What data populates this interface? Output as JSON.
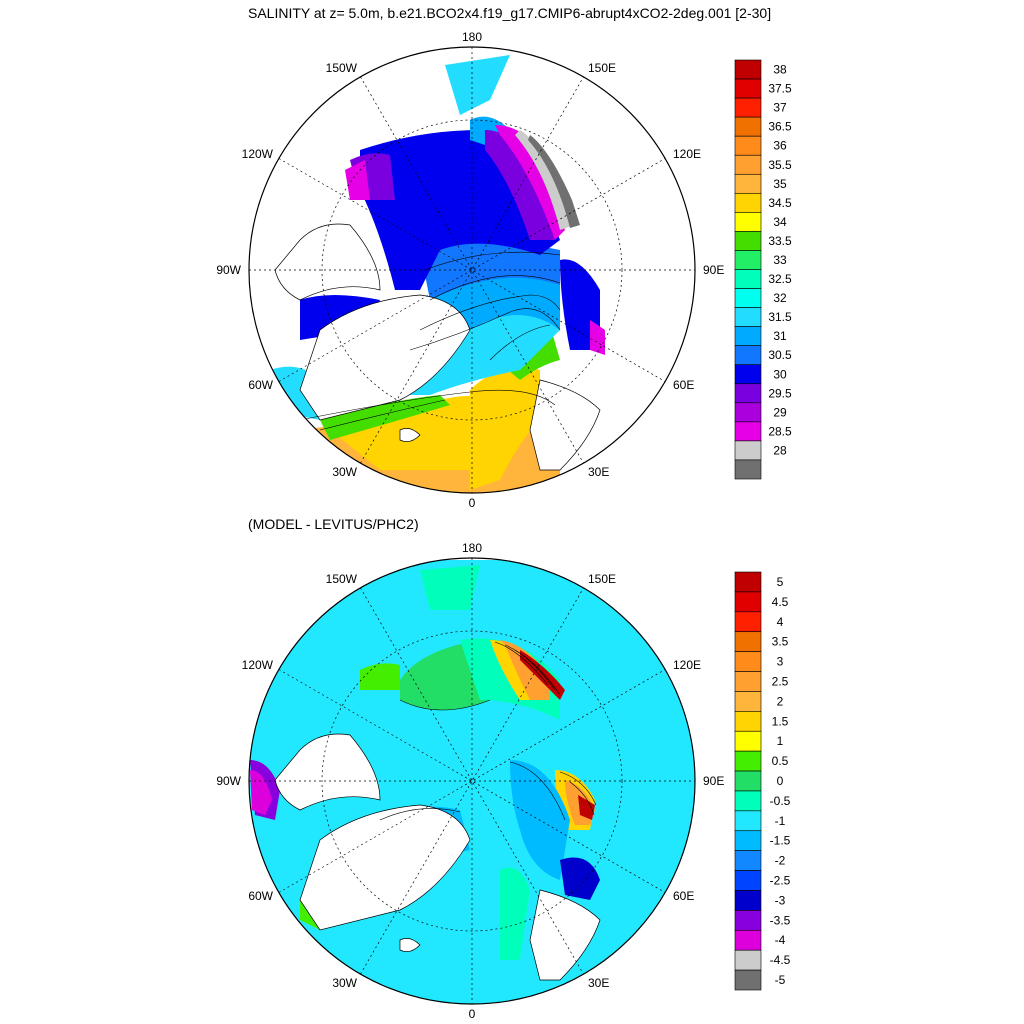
{
  "panels": [
    {
      "title": "SALINITY at z=   5.0m, b.e21.BCO2x4.f19_g17.CMIP6-abrupt4xCO2-2deg.001 [2-30]",
      "longitude_labels": {
        "top": "180",
        "bottom": "0",
        "left": "90W",
        "right": "90E",
        "upper_left_1": "150W",
        "upper_left_2": "120W",
        "lower_left_1": "60W",
        "lower_left_2": "30W",
        "upper_right_1": "150E",
        "upper_right_2": "120E",
        "lower_right_1": "60E",
        "lower_right_2": "30E"
      },
      "colorbar": {
        "labels": [
          "38",
          "37.5",
          "37",
          "36.5",
          "36",
          "35.5",
          "35",
          "34.5",
          "34",
          "33.5",
          "33",
          "32.5",
          "32",
          "31.5",
          "31",
          "30.5",
          "30",
          "29.5",
          "29",
          "28.5",
          "28"
        ],
        "colors": [
          "#c00000",
          "#e00000",
          "#ff2000",
          "#f07000",
          "#ff8c1a",
          "#ffa030",
          "#ffb43c",
          "#ffd400",
          "#ffff00",
          "#44dd00",
          "#22ee66",
          "#00ffbb",
          "#00ffee",
          "#22ddff",
          "#00aaff",
          "#1177ff",
          "#0000ee",
          "#7a00e0",
          "#aa00dd",
          "#e600e6",
          "#cccccc",
          "#707070"
        ]
      }
    },
    {
      "title": "(MODEL - LEVITUS/PHC2)",
      "longitude_labels": {
        "top": "180",
        "bottom": "0",
        "left": "90W",
        "right": "90E",
        "upper_left_1": "150W",
        "upper_left_2": "120W",
        "lower_left_1": "60W",
        "lower_left_2": "30W",
        "upper_right_1": "150E",
        "upper_right_2": "120E",
        "lower_right_1": "60E",
        "lower_right_2": "30E"
      },
      "colorbar": {
        "labels": [
          "5",
          "4.5",
          "4",
          "3.5",
          "3",
          "2.5",
          "2",
          "1.5",
          "1",
          "0.5",
          "0",
          "-0.5",
          "-1",
          "-1.5",
          "-2",
          "-2.5",
          "-3",
          "-3.5",
          "-4",
          "-4.5",
          "-5"
        ],
        "colors": [
          "#c00000",
          "#e00000",
          "#ff2000",
          "#f07000",
          "#ff8c1a",
          "#ffa030",
          "#ffb43c",
          "#ffd400",
          "#ffff00",
          "#44ee00",
          "#22dd66",
          "#00ffbb",
          "#22e8ff",
          "#00bbff",
          "#1188ff",
          "#0044ff",
          "#0000cc",
          "#8800dd",
          "#dd00dd",
          "#cccccc",
          "#707070"
        ]
      }
    }
  ]
}
